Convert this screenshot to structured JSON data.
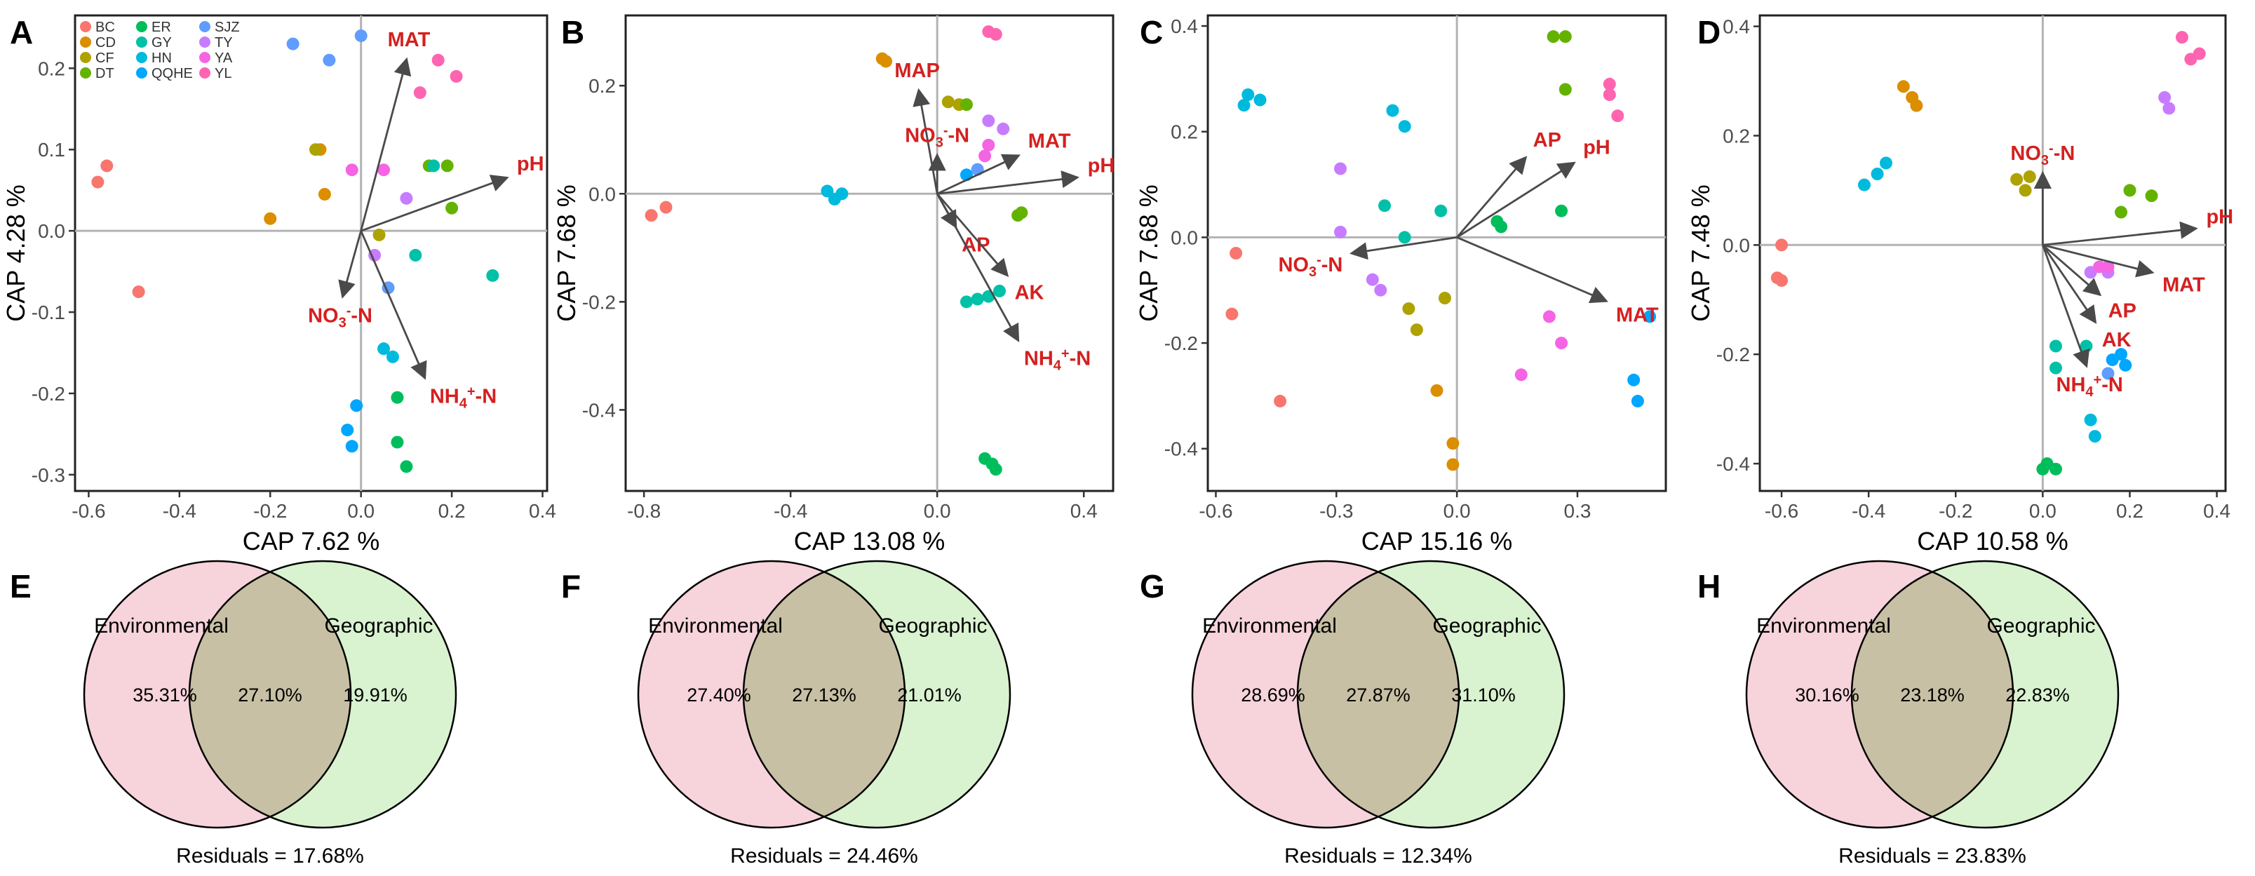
{
  "groups": [
    {
      "name": "BC",
      "color": "#F8766D"
    },
    {
      "name": "CD",
      "color": "#DB8E00"
    },
    {
      "name": "CF",
      "color": "#AEA200"
    },
    {
      "name": "DT",
      "color": "#64B200"
    },
    {
      "name": "ER",
      "color": "#00BD5C"
    },
    {
      "name": "GY",
      "color": "#00C1A7"
    },
    {
      "name": "HN",
      "color": "#00BADE"
    },
    {
      "name": "QQHE",
      "color": "#00A6FF"
    },
    {
      "name": "SJZ",
      "color": "#619CFF"
    },
    {
      "name": "TY",
      "color": "#C77CFF"
    },
    {
      "name": "YA",
      "color": "#F564E3"
    },
    {
      "name": "YL",
      "color": "#FF64B0"
    }
  ],
  "colors": {
    "arrow": "#4a4a4a",
    "arrow_label": "#d42020",
    "env_fill": "#f7d3dc",
    "geo_fill": "#d9f2d0",
    "overlap_fill": "#c8c0a4"
  },
  "chart_data": [
    {
      "type": "scatter",
      "panel": "A",
      "xlabel": "CAP 7.62 %",
      "ylabel": "CAP 4.28 %",
      "xlim": [
        -0.63,
        0.41
      ],
      "ylim": [
        -0.32,
        0.265
      ],
      "xticks": [
        -0.6,
        -0.4,
        -0.2,
        0.0,
        0.2,
        0.4
      ],
      "xtick_labels": [
        "-0.6",
        "-0.4",
        "-0.2",
        "0.0",
        "0.2",
        "0.4"
      ],
      "yticks": [
        -0.3,
        -0.2,
        -0.1,
        0.0,
        0.1,
        0.2
      ],
      "ytick_labels": [
        "-0.3",
        "-0.2",
        "-0.1",
        "0.0",
        "0.1",
        "0.2"
      ],
      "legend": true,
      "arrows": [
        {
          "label": "MAT",
          "x": 0.1,
          "y": 0.21
        },
        {
          "label": "pH",
          "x": 0.32,
          "y": 0.065
        },
        {
          "label": "NO3-N",
          "x": -0.04,
          "y": -0.08
        },
        {
          "label": "NH4+-N",
          "x": 0.14,
          "y": -0.18
        }
      ],
      "points": [
        {
          "g": "BC",
          "x": -0.58,
          "y": 0.06
        },
        {
          "g": "BC",
          "x": -0.56,
          "y": 0.08
        },
        {
          "g": "BC",
          "x": -0.49,
          "y": -0.075
        },
        {
          "g": "CD",
          "x": -0.2,
          "y": 0.015
        },
        {
          "g": "CD",
          "x": -0.09,
          "y": 0.1
        },
        {
          "g": "CD",
          "x": -0.08,
          "y": 0.045
        },
        {
          "g": "CF",
          "x": -0.1,
          "y": 0.1
        },
        {
          "g": "CF",
          "x": 0.04,
          "y": -0.005
        },
        {
          "g": "DT",
          "x": 0.15,
          "y": 0.08
        },
        {
          "g": "DT",
          "x": 0.19,
          "y": 0.08
        },
        {
          "g": "DT",
          "x": 0.2,
          "y": 0.028
        },
        {
          "g": "ER",
          "x": 0.08,
          "y": -0.205
        },
        {
          "g": "ER",
          "x": 0.08,
          "y": -0.26
        },
        {
          "g": "ER",
          "x": 0.1,
          "y": -0.29
        },
        {
          "g": "GY",
          "x": 0.12,
          "y": -0.03
        },
        {
          "g": "GY",
          "x": 0.29,
          "y": -0.055
        },
        {
          "g": "GY",
          "x": 0.16,
          "y": 0.08
        },
        {
          "g": "HN",
          "x": 0.05,
          "y": -0.145
        },
        {
          "g": "HN",
          "x": 0.07,
          "y": -0.155
        },
        {
          "g": "QQHE",
          "x": -0.03,
          "y": -0.245
        },
        {
          "g": "QQHE",
          "x": -0.02,
          "y": -0.265
        },
        {
          "g": "QQHE",
          "x": -0.01,
          "y": -0.215
        },
        {
          "g": "SJZ",
          "x": -0.15,
          "y": 0.23
        },
        {
          "g": "SJZ",
          "x": -0.07,
          "y": 0.21
        },
        {
          "g": "SJZ",
          "x": 0.0,
          "y": 0.24
        },
        {
          "g": "SJZ",
          "x": 0.06,
          "y": -0.07
        },
        {
          "g": "TY",
          "x": 0.03,
          "y": -0.03
        },
        {
          "g": "TY",
          "x": 0.1,
          "y": 0.04
        },
        {
          "g": "YA",
          "x": -0.02,
          "y": 0.075
        },
        {
          "g": "YA",
          "x": 0.05,
          "y": 0.075
        },
        {
          "g": "YL",
          "x": 0.13,
          "y": 0.17
        },
        {
          "g": "YL",
          "x": 0.17,
          "y": 0.21
        },
        {
          "g": "YL",
          "x": 0.21,
          "y": 0.19
        }
      ]
    },
    {
      "type": "scatter",
      "panel": "B",
      "xlabel": "CAP 13.08 %",
      "ylabel": "CAP 7.68 %",
      "xlim": [
        -0.85,
        0.48
      ],
      "ylim": [
        -0.55,
        0.33
      ],
      "xticks": [
        -0.8,
        -0.4,
        0.0,
        0.4
      ],
      "xtick_labels": [
        "-0.8",
        "-0.4",
        "0.0",
        "0.4"
      ],
      "yticks": [
        -0.4,
        -0.2,
        0.0,
        0.2
      ],
      "ytick_labels": [
        "-0.4",
        "-0.2",
        "0.0",
        "0.2"
      ],
      "legend": false,
      "arrows": [
        {
          "label": "MAP",
          "x": -0.05,
          "y": 0.19
        },
        {
          "label": "NO3-N",
          "x": 0.0,
          "y": 0.07
        },
        {
          "label": "MAT",
          "x": 0.22,
          "y": 0.07
        },
        {
          "label": "pH",
          "x": 0.38,
          "y": 0.03
        },
        {
          "label": "AP",
          "x": 0.05,
          "y": -0.06
        },
        {
          "label": "AK",
          "x": 0.19,
          "y": -0.15
        },
        {
          "label": "NH4+-N",
          "x": 0.22,
          "y": -0.27
        }
      ],
      "points": [
        {
          "g": "BC",
          "x": -0.78,
          "y": -0.04
        },
        {
          "g": "BC",
          "x": -0.74,
          "y": -0.025
        },
        {
          "g": "CD",
          "x": -0.15,
          "y": 0.25
        },
        {
          "g": "CD",
          "x": -0.14,
          "y": 0.245
        },
        {
          "g": "CF",
          "x": 0.03,
          "y": 0.17
        },
        {
          "g": "CF",
          "x": 0.06,
          "y": 0.165
        },
        {
          "g": "DT",
          "x": 0.08,
          "y": 0.165
        },
        {
          "g": "DT",
          "x": 0.22,
          "y": -0.04
        },
        {
          "g": "DT",
          "x": 0.23,
          "y": -0.035
        },
        {
          "g": "ER",
          "x": 0.13,
          "y": -0.49
        },
        {
          "g": "ER",
          "x": 0.15,
          "y": -0.5
        },
        {
          "g": "ER",
          "x": 0.16,
          "y": -0.51
        },
        {
          "g": "GY",
          "x": 0.08,
          "y": -0.2
        },
        {
          "g": "GY",
          "x": 0.11,
          "y": -0.195
        },
        {
          "g": "GY",
          "x": 0.14,
          "y": -0.19
        },
        {
          "g": "GY",
          "x": 0.17,
          "y": -0.18
        },
        {
          "g": "HN",
          "x": -0.3,
          "y": 0.005
        },
        {
          "g": "HN",
          "x": -0.28,
          "y": -0.01
        },
        {
          "g": "HN",
          "x": -0.26,
          "y": 0.0
        },
        {
          "g": "QQHE",
          "x": 0.08,
          "y": 0.035
        },
        {
          "g": "SJZ",
          "x": 0.11,
          "y": 0.045
        },
        {
          "g": "TY",
          "x": 0.14,
          "y": 0.135
        },
        {
          "g": "TY",
          "x": 0.18,
          "y": 0.12
        },
        {
          "g": "YA",
          "x": 0.13,
          "y": 0.07
        },
        {
          "g": "YA",
          "x": 0.14,
          "y": 0.09
        },
        {
          "g": "YL",
          "x": 0.14,
          "y": 0.3
        },
        {
          "g": "YL",
          "x": 0.16,
          "y": 0.295
        }
      ]
    },
    {
      "type": "scatter",
      "panel": "C",
      "xlabel": "CAP 15.16 %",
      "ylabel": "CAP 7.68 %",
      "xlim": [
        -0.62,
        0.52
      ],
      "ylim": [
        -0.48,
        0.42
      ],
      "xticks": [
        -0.6,
        -0.3,
        0.0,
        0.3
      ],
      "xtick_labels": [
        "-0.6",
        "-0.3",
        "0.0",
        "0.3"
      ],
      "yticks": [
        -0.4,
        -0.2,
        0.0,
        0.2,
        0.4
      ],
      "ytick_labels": [
        "-0.4",
        "-0.2",
        "0.0",
        "0.2",
        "0.4"
      ],
      "legend": false,
      "arrows": [
        {
          "label": "AP",
          "x": 0.17,
          "y": 0.15
        },
        {
          "label": "pH",
          "x": 0.29,
          "y": 0.14
        },
        {
          "label": "NO3-N",
          "x": -0.26,
          "y": -0.03
        },
        {
          "label": "MAT",
          "x": 0.37,
          "y": -0.12
        }
      ],
      "points": [
        {
          "g": "BC",
          "x": -0.55,
          "y": -0.03
        },
        {
          "g": "BC",
          "x": -0.56,
          "y": -0.145
        },
        {
          "g": "BC",
          "x": -0.44,
          "y": -0.31
        },
        {
          "g": "CD",
          "x": -0.05,
          "y": -0.29
        },
        {
          "g": "CD",
          "x": -0.01,
          "y": -0.39
        },
        {
          "g": "CD",
          "x": -0.01,
          "y": -0.43
        },
        {
          "g": "CF",
          "x": -0.12,
          "y": -0.135
        },
        {
          "g": "CF",
          "x": -0.1,
          "y": -0.175
        },
        {
          "g": "CF",
          "x": -0.03,
          "y": -0.115
        },
        {
          "g": "DT",
          "x": 0.24,
          "y": 0.38
        },
        {
          "g": "DT",
          "x": 0.27,
          "y": 0.38
        },
        {
          "g": "DT",
          "x": 0.27,
          "y": 0.28
        },
        {
          "g": "ER",
          "x": 0.11,
          "y": 0.02
        },
        {
          "g": "ER",
          "x": 0.26,
          "y": 0.05
        },
        {
          "g": "ER",
          "x": 0.1,
          "y": 0.03
        },
        {
          "g": "GY",
          "x": -0.18,
          "y": 0.06
        },
        {
          "g": "GY",
          "x": -0.13,
          "y": 0.0
        },
        {
          "g": "GY",
          "x": -0.04,
          "y": 0.05
        },
        {
          "g": "HN",
          "x": -0.53,
          "y": 0.25
        },
        {
          "g": "HN",
          "x": -0.52,
          "y": 0.27
        },
        {
          "g": "HN",
          "x": -0.49,
          "y": 0.26
        },
        {
          "g": "HN",
          "x": -0.16,
          "y": 0.24
        },
        {
          "g": "HN",
          "x": -0.13,
          "y": 0.21
        },
        {
          "g": "QQHE",
          "x": 0.44,
          "y": -0.27
        },
        {
          "g": "QQHE",
          "x": 0.45,
          "y": -0.31
        },
        {
          "g": "QQHE",
          "x": 0.48,
          "y": -0.15
        },
        {
          "g": "TY",
          "x": -0.29,
          "y": 0.13
        },
        {
          "g": "TY",
          "x": -0.29,
          "y": 0.01
        },
        {
          "g": "TY",
          "x": -0.21,
          "y": -0.08
        },
        {
          "g": "TY",
          "x": -0.19,
          "y": -0.1
        },
        {
          "g": "YA",
          "x": 0.23,
          "y": -0.15
        },
        {
          "g": "YA",
          "x": 0.26,
          "y": -0.2
        },
        {
          "g": "YA",
          "x": 0.16,
          "y": -0.26
        },
        {
          "g": "YL",
          "x": 0.38,
          "y": 0.29
        },
        {
          "g": "YL",
          "x": 0.38,
          "y": 0.27
        },
        {
          "g": "YL",
          "x": 0.4,
          "y": 0.23
        }
      ]
    },
    {
      "type": "scatter",
      "panel": "D",
      "xlabel": "CAP 10.58 %",
      "ylabel": "CAP 7.48 %",
      "xlim": [
        -0.65,
        0.42
      ],
      "ylim": [
        -0.45,
        0.42
      ],
      "xticks": [
        -0.6,
        -0.4,
        -0.2,
        0.0,
        0.2,
        0.4
      ],
      "xtick_labels": [
        "-0.6",
        "-0.4",
        "-0.2",
        "0.0",
        "0.2",
        "0.4"
      ],
      "yticks": [
        -0.4,
        -0.2,
        0.0,
        0.2,
        0.4
      ],
      "ytick_labels": [
        "-0.4",
        "-0.2",
        "0.0",
        "0.2",
        "0.4"
      ],
      "legend": false,
      "arrows": [
        {
          "label": "NO3-N",
          "x": 0.0,
          "y": 0.13
        },
        {
          "label": "pH",
          "x": 0.35,
          "y": 0.03
        },
        {
          "label": "MAT",
          "x": 0.25,
          "y": -0.05
        },
        {
          "label": "AP",
          "x": 0.13,
          "y": -0.09
        },
        {
          "label": "AK",
          "x": 0.12,
          "y": -0.14
        },
        {
          "label": "NH4+-N",
          "x": 0.1,
          "y": -0.22
        }
      ],
      "points": [
        {
          "g": "BC",
          "x": -0.6,
          "y": 0.0
        },
        {
          "g": "BC",
          "x": -0.61,
          "y": -0.06
        },
        {
          "g": "BC",
          "x": -0.6,
          "y": -0.065
        },
        {
          "g": "CD",
          "x": -0.32,
          "y": 0.29
        },
        {
          "g": "CD",
          "x": -0.3,
          "y": 0.27
        },
        {
          "g": "CD",
          "x": -0.29,
          "y": 0.255
        },
        {
          "g": "CF",
          "x": -0.06,
          "y": 0.12
        },
        {
          "g": "CF",
          "x": -0.04,
          "y": 0.1
        },
        {
          "g": "CF",
          "x": -0.03,
          "y": 0.125
        },
        {
          "g": "DT",
          "x": 0.18,
          "y": 0.06
        },
        {
          "g": "DT",
          "x": 0.2,
          "y": 0.1
        },
        {
          "g": "DT",
          "x": 0.25,
          "y": 0.09
        },
        {
          "g": "ER",
          "x": 0.0,
          "y": -0.41
        },
        {
          "g": "ER",
          "x": 0.01,
          "y": -0.4
        },
        {
          "g": "ER",
          "x": 0.03,
          "y": -0.41
        },
        {
          "g": "GY",
          "x": 0.03,
          "y": -0.185
        },
        {
          "g": "GY",
          "x": 0.03,
          "y": -0.225
        },
        {
          "g": "GY",
          "x": 0.1,
          "y": -0.185
        },
        {
          "g": "HN",
          "x": -0.41,
          "y": 0.11
        },
        {
          "g": "HN",
          "x": -0.38,
          "y": 0.13
        },
        {
          "g": "HN",
          "x": -0.36,
          "y": 0.15
        },
        {
          "g": "HN",
          "x": 0.11,
          "y": -0.32
        },
        {
          "g": "HN",
          "x": 0.12,
          "y": -0.35
        },
        {
          "g": "QQHE",
          "x": 0.16,
          "y": -0.21
        },
        {
          "g": "QQHE",
          "x": 0.18,
          "y": -0.2
        },
        {
          "g": "QQHE",
          "x": 0.19,
          "y": -0.22
        },
        {
          "g": "SJZ",
          "x": 0.15,
          "y": -0.235
        },
        {
          "g": "TY",
          "x": 0.11,
          "y": -0.05
        },
        {
          "g": "TY",
          "x": 0.15,
          "y": -0.05
        },
        {
          "g": "TY",
          "x": 0.28,
          "y": 0.27
        },
        {
          "g": "TY",
          "x": 0.29,
          "y": 0.25
        },
        {
          "g": "YA",
          "x": 0.13,
          "y": -0.04
        },
        {
          "g": "YA",
          "x": 0.15,
          "y": -0.04
        },
        {
          "g": "YL",
          "x": 0.32,
          "y": 0.38
        },
        {
          "g": "YL",
          "x": 0.34,
          "y": 0.34
        },
        {
          "g": "YL",
          "x": 0.36,
          "y": 0.35
        }
      ]
    }
  ],
  "venn": [
    {
      "panel": "E",
      "left_label": "Environmental",
      "right_label": "Geographic",
      "left_value": "35.31%",
      "overlap_value": "27.10%",
      "right_value": "19.91%",
      "residuals": "Residuals = 17.68%"
    },
    {
      "panel": "F",
      "left_label": "Environmental",
      "right_label": "Geographic",
      "left_value": "27.40%",
      "overlap_value": "27.13%",
      "right_value": "21.01%",
      "residuals": "Residuals = 24.46%"
    },
    {
      "panel": "G",
      "left_label": "Environmental",
      "right_label": "Geographic",
      "left_value": "28.69%",
      "overlap_value": "27.87%",
      "right_value": "31.10%",
      "residuals": "Residuals = 12.34%"
    },
    {
      "panel": "H",
      "left_label": "Environmental",
      "right_label": "Geographic",
      "left_value": "30.16%",
      "overlap_value": "23.18%",
      "right_value": "22.83%",
      "residuals": "Residuals = 23.83%"
    }
  ]
}
